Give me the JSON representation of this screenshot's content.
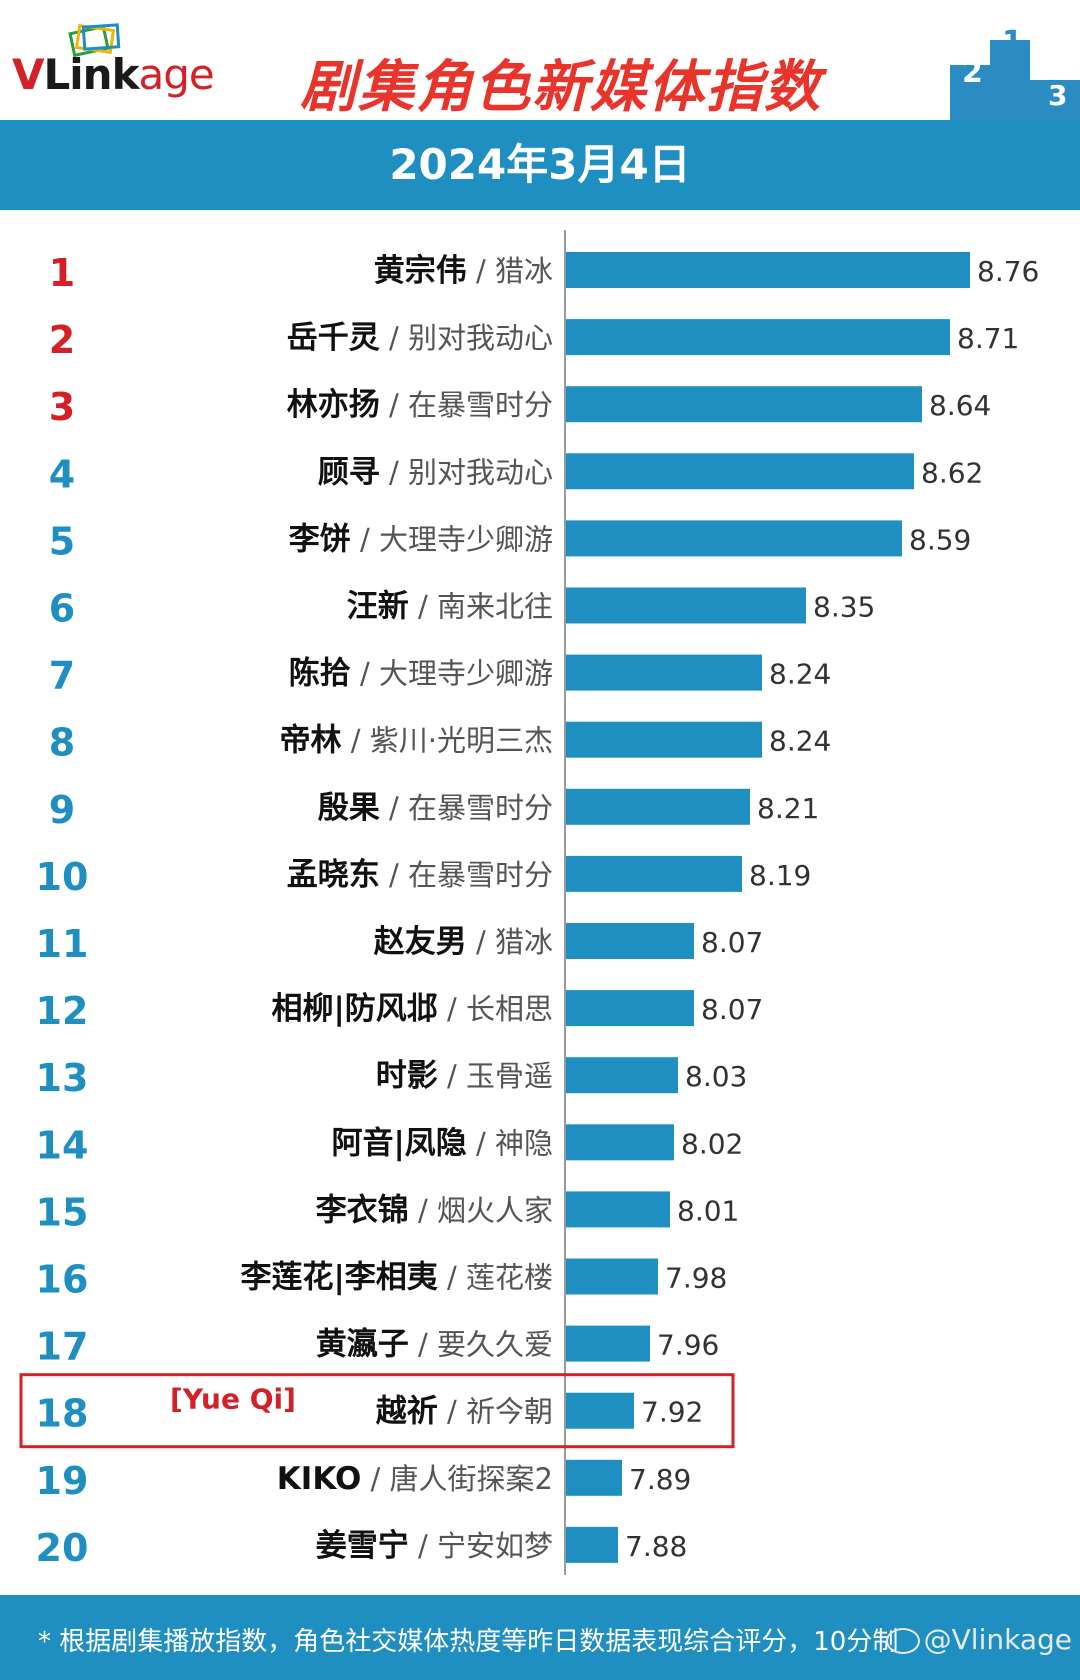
{
  "header": {
    "logo_text_v": "V",
    "logo_text_link": "Link",
    "logo_text_age": "age",
    "title": "剧集角色新媒体指数"
  },
  "date": "2024年3月4日",
  "chart_data": {
    "type": "bar",
    "orientation": "horizontal",
    "title": "剧集角色新媒体指数",
    "subtitle": "2024年3月4日",
    "ranks": [
      "1",
      "2",
      "3",
      "4",
      "5",
      "6",
      "7",
      "8",
      "9",
      "10",
      "11",
      "12",
      "13",
      "14",
      "15",
      "16",
      "17",
      "18",
      "19",
      "20"
    ],
    "characters": [
      "黄宗伟",
      "岳千灵",
      "林亦扬",
      "顾寻",
      "李饼",
      "汪新",
      "陈拾",
      "帝林",
      "殷果",
      "孟晓东",
      "赵友男",
      "相柳|防风邶",
      "时影",
      "阿音|凤隐",
      "李衣锦",
      "李莲花|李相夷",
      "黄瀛子",
      "越祈",
      "KIKO",
      "姜雪宁"
    ],
    "dramas": [
      "猎冰",
      "别对我动心",
      "在暴雪时分",
      "别对我动心",
      "大理寺少卿游",
      "南来北往",
      "大理寺少卿游",
      "紫川·光明三杰",
      "在暴雪时分",
      "在暴雪时分",
      "猎冰",
      "长相思",
      "玉骨遥",
      "神隐",
      "烟火人家",
      "莲花楼",
      "要久久爱",
      "祈今朝",
      "唐人街探案2",
      "宁安如梦"
    ],
    "values": [
      8.76,
      8.71,
      8.64,
      8.62,
      8.59,
      8.35,
      8.24,
      8.24,
      8.21,
      8.19,
      8.07,
      8.07,
      8.03,
      8.02,
      8.01,
      7.98,
      7.96,
      7.92,
      7.89,
      7.88
    ],
    "highlight_index": 17,
    "highlight_note": "[Yue Qi]",
    "xlim": [
      7.75,
      8.8
    ],
    "colors": {
      "bar": "#1e8fc0",
      "rank_top3": "#d42027",
      "rank_rest": "#1e8fc0",
      "highlight_box": "#d42027",
      "value_text": "#333333",
      "drama_text": "#555555"
    }
  },
  "footer": {
    "note": "* 根据剧集播放指数，角色社交媒体热度等昨日数据表现综合评分，10分制",
    "watermark": "@Vlinkage"
  }
}
